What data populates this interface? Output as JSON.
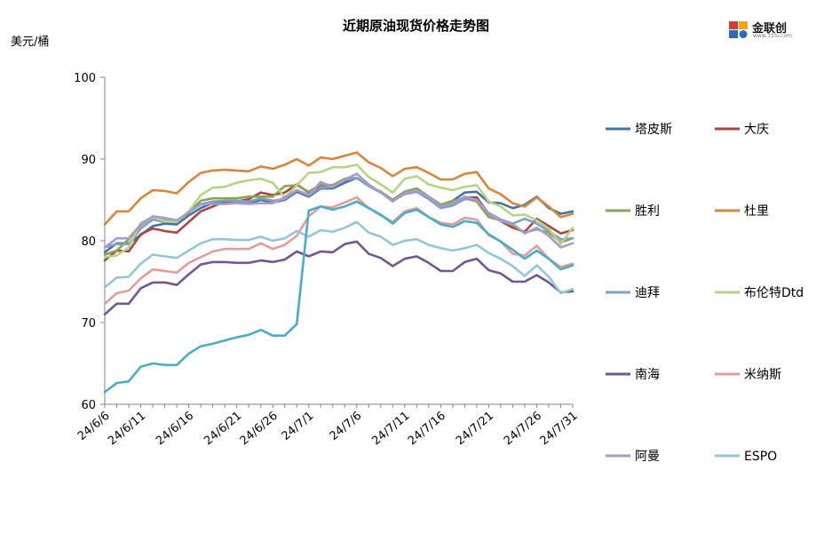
{
  "header": {
    "title": "近期原油现货价格走势图",
    "unit": "美元/桶",
    "logo_text": "金联创",
    "logo_url": "www.315i.com"
  },
  "chart_data": {
    "type": "line",
    "title": "近期原油现货价格走势图",
    "ylabel": "美元/桶",
    "xlabel": "",
    "ylim": [
      60,
      100
    ],
    "yticks": [
      60,
      70,
      80,
      90,
      100
    ],
    "x_tick_labels": [
      "24/6/6",
      "24/6/11",
      "24/6/16",
      "24/6/21",
      "24/6/26",
      "24/7/1",
      "24/7/6",
      "24/7/11",
      "24/7/16",
      "24/7/21",
      "24/7/26",
      "24/7/31"
    ],
    "x": [
      "24/6/6",
      "24/6/7",
      "24/6/10",
      "24/6/11",
      "24/6/12",
      "24/6/13",
      "24/6/14",
      "24/6/17",
      "24/6/18",
      "24/6/19",
      "24/6/20",
      "24/6/21",
      "24/6/24",
      "24/6/25",
      "24/6/26",
      "24/6/27",
      "24/6/28",
      "24/7/1",
      "24/7/2",
      "24/7/3",
      "24/7/4",
      "24/7/5",
      "24/7/8",
      "24/7/9",
      "24/7/10",
      "24/7/11",
      "24/7/12",
      "24/7/15",
      "24/7/16",
      "24/7/17",
      "24/7/18",
      "24/7/19",
      "24/7/22",
      "24/7/23",
      "24/7/24",
      "24/7/25",
      "24/7/26",
      "24/7/29",
      "24/7/30",
      "24/7/31"
    ],
    "grid": false,
    "legend_position": "right",
    "series": [
      {
        "name": "塔皮斯",
        "color": "#4572A7",
        "values": [
          78.6,
          79.7,
          79.7,
          80.7,
          81.8,
          82.1,
          82.0,
          83.1,
          84.0,
          84.6,
          84.6,
          84.7,
          84.6,
          85.0,
          84.7,
          85.0,
          86.0,
          85.4,
          86.4,
          86.4,
          87.1,
          87.7,
          86.7,
          86.0,
          85.0,
          86.0,
          86.4,
          85.4,
          84.4,
          84.9,
          85.9,
          86.0,
          84.7,
          84.6,
          84.0,
          84.4,
          85.4,
          84.0,
          83.3,
          83.6
        ]
      },
      {
        "name": "大庆",
        "color": "#AA4643",
        "values": [
          77.6,
          78.8,
          78.7,
          80.8,
          81.5,
          81.2,
          81.0,
          82.3,
          83.6,
          84.2,
          84.8,
          84.8,
          85.1,
          85.9,
          85.6,
          85.9,
          86.9,
          85.9,
          86.8,
          86.8,
          87.4,
          87.7,
          86.7,
          85.9,
          85.0,
          85.9,
          86.2,
          85.2,
          84.4,
          84.8,
          85.3,
          85.3,
          83.3,
          82.4,
          81.6,
          81.1,
          82.7,
          81.8,
          80.9,
          81.3
        ]
      },
      {
        "name": "胜利",
        "color": "#89A54E",
        "values": [
          78.3,
          78.8,
          80.2,
          81.9,
          83.0,
          82.5,
          82.3,
          83.4,
          84.9,
          85.2,
          85.2,
          85.2,
          85.4,
          85.4,
          85.4,
          86.7,
          86.8,
          86.0,
          86.9,
          86.8,
          87.6,
          87.7,
          86.7,
          86.0,
          85.0,
          86.0,
          86.4,
          85.3,
          84.4,
          84.9,
          85.2,
          84.8,
          82.9,
          82.5,
          81.9,
          81.0,
          81.4,
          81.0,
          79.8,
          80.3
        ]
      },
      {
        "name": "杜里",
        "color": "#DB843D",
        "values": [
          82.0,
          83.6,
          83.6,
          85.2,
          86.2,
          86.1,
          85.8,
          87.2,
          88.3,
          88.6,
          88.7,
          88.6,
          88.5,
          89.1,
          88.8,
          89.3,
          90.0,
          89.2,
          90.2,
          90.0,
          90.4,
          90.8,
          89.6,
          88.9,
          87.9,
          88.8,
          89.0,
          88.3,
          87.5,
          87.5,
          88.2,
          88.4,
          86.4,
          85.7,
          84.6,
          84.2,
          85.3,
          84.2,
          82.9,
          83.3
        ]
      },
      {
        "name": "迪拜",
        "color": "#80A0C7",
        "values": [
          79.2,
          79.6,
          79.6,
          81.5,
          82.6,
          82.3,
          82.4,
          83.5,
          84.5,
          84.8,
          84.9,
          84.9,
          84.8,
          85.2,
          84.9,
          85.1,
          86.2,
          85.6,
          86.5,
          86.6,
          87.4,
          87.7,
          86.7,
          85.9,
          84.9,
          85.7,
          86.0,
          85.1,
          84.0,
          84.3,
          85.1,
          85.0,
          83.4,
          82.6,
          82.1,
          82.7,
          82.1,
          81.2,
          80.2,
          80.3
        ]
      },
      {
        "name": "布伦特Dtd",
        "color": "#B6D484",
        "values": [
          78.0,
          78.2,
          79.2,
          82.2,
          82.9,
          82.4,
          82.3,
          83.6,
          85.6,
          86.5,
          86.6,
          87.1,
          87.4,
          87.6,
          87.1,
          85.3,
          86.8,
          88.3,
          88.4,
          89.0,
          89.0,
          89.3,
          87.8,
          86.9,
          85.9,
          87.6,
          87.9,
          86.9,
          86.5,
          86.2,
          86.6,
          86.8,
          84.8,
          84.2,
          83.1,
          83.2,
          82.5,
          81.5,
          79.6,
          81.6
        ]
      },
      {
        "name": "南海",
        "color": "#71588F",
        "values": [
          71.0,
          72.3,
          72.3,
          74.2,
          74.9,
          74.9,
          74.6,
          75.9,
          77.1,
          77.4,
          77.4,
          77.3,
          77.3,
          77.6,
          77.4,
          77.7,
          78.7,
          78.1,
          78.7,
          78.6,
          79.6,
          79.9,
          78.4,
          77.9,
          76.9,
          77.8,
          78.1,
          77.3,
          76.3,
          76.3,
          77.4,
          77.8,
          76.4,
          76.0,
          75.0,
          75.0,
          75.8,
          74.9,
          73.7,
          73.8
        ]
      },
      {
        "name": "米纳斯",
        "color": "#E49C9A",
        "values": [
          72.3,
          73.6,
          73.9,
          75.4,
          76.5,
          76.3,
          76.1,
          77.3,
          78.0,
          78.7,
          79.0,
          79.0,
          79.0,
          79.7,
          79.0,
          79.5,
          80.6,
          83.0,
          84.2,
          84.1,
          84.7,
          85.3,
          84.0,
          83.1,
          82.3,
          83.6,
          84.0,
          82.9,
          82.2,
          82.0,
          82.8,
          82.6,
          80.7,
          79.9,
          78.4,
          78.2,
          79.4,
          77.8,
          76.8,
          77.2
        ]
      },
      {
        "name": "阿曼",
        "color": "#A99BCA",
        "values": [
          79.2,
          80.3,
          80.3,
          82.0,
          83.0,
          82.8,
          82.5,
          83.5,
          84.4,
          84.5,
          84.5,
          84.6,
          84.5,
          84.6,
          84.6,
          85.3,
          86.2,
          85.6,
          87.2,
          86.6,
          87.5,
          88.2,
          86.9,
          85.9,
          84.8,
          85.8,
          86.2,
          85.4,
          84.2,
          84.6,
          85.4,
          85.0,
          83.3,
          82.4,
          82.1,
          80.9,
          81.6,
          80.6,
          79.2,
          79.7
        ]
      },
      {
        "name": "ESPO",
        "color": "#93C6D9",
        "values": [
          74.3,
          75.5,
          75.6,
          77.2,
          78.3,
          78.1,
          77.9,
          78.8,
          79.7,
          80.2,
          80.2,
          80.1,
          80.1,
          80.5,
          80.0,
          80.3,
          81.2,
          80.5,
          81.3,
          81.1,
          81.6,
          82.3,
          81.0,
          80.5,
          79.5,
          80.0,
          80.2,
          79.5,
          79.1,
          78.8,
          79.1,
          79.5,
          78.5,
          77.8,
          76.9,
          75.7,
          77.0,
          75.6,
          73.6,
          74.1
        ]
      },
      {
        "name": "",
        "color": "#4BACC6",
        "values": [
          61.5,
          62.6,
          62.8,
          64.6,
          65.0,
          64.8,
          64.8,
          66.2,
          67.1,
          67.4,
          67.8,
          68.2,
          68.5,
          69.1,
          68.4,
          68.4,
          69.8,
          83.7,
          84.2,
          83.8,
          84.2,
          84.8,
          84.0,
          83.2,
          82.1,
          83.4,
          83.8,
          82.9,
          82.0,
          81.7,
          82.4,
          82.2,
          80.8,
          79.9,
          78.9,
          77.8,
          78.8,
          77.8,
          76.5,
          77.0
        ]
      }
    ]
  }
}
